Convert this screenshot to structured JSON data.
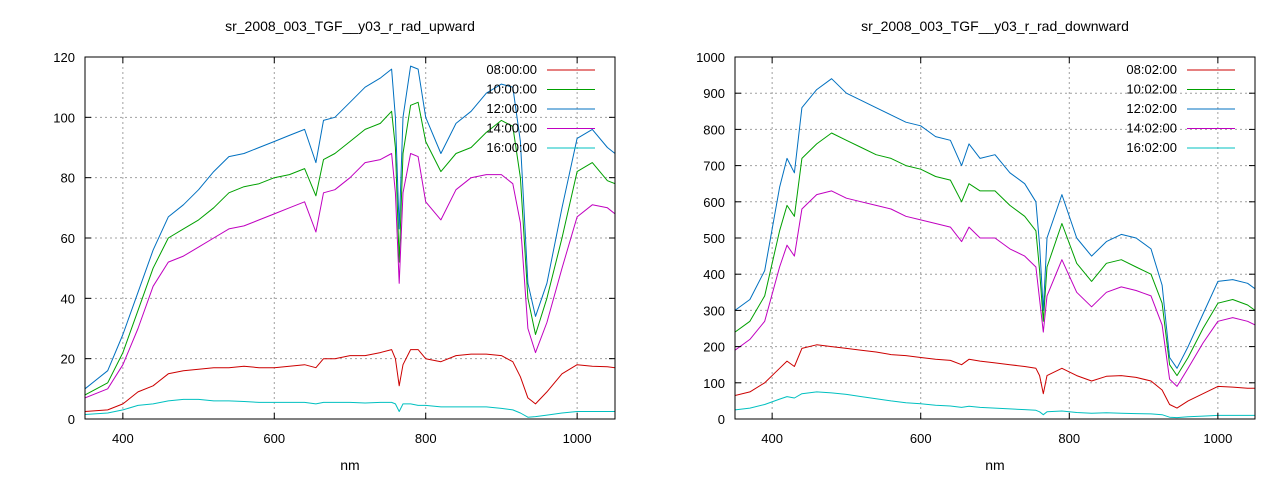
{
  "chart_data": [
    {
      "type": "line",
      "title": "sr_2008_003_TGF__y03_r_rad_upward",
      "xlabel": "nm",
      "ylabel": "",
      "xlim": [
        350,
        1050
      ],
      "ylim": [
        0,
        120
      ],
      "xticks": [
        400,
        600,
        800,
        1000
      ],
      "yticks": [
        0,
        20,
        40,
        60,
        80,
        100,
        120
      ],
      "grid": true,
      "legend": "top-right",
      "series": [
        {
          "name": "08:00:00",
          "color": "#cc0000",
          "x": [
            350,
            380,
            400,
            420,
            440,
            460,
            480,
            500,
            520,
            540,
            560,
            580,
            600,
            620,
            640,
            655,
            665,
            680,
            700,
            720,
            740,
            755,
            760,
            765,
            770,
            780,
            790,
            800,
            820,
            840,
            860,
            880,
            900,
            915,
            925,
            935,
            945,
            960,
            980,
            1000,
            1020,
            1040,
            1050
          ],
          "y": [
            2.5,
            3,
            5,
            9,
            11,
            15,
            16,
            16.5,
            17,
            17,
            17.5,
            17,
            17,
            17.5,
            18,
            17,
            20,
            20,
            21,
            21,
            22,
            23,
            20,
            11,
            18,
            23,
            23,
            20,
            19,
            21,
            21.5,
            21.5,
            21,
            19,
            14,
            7,
            5,
            9,
            15,
            18,
            17.5,
            17.3,
            17
          ]
        },
        {
          "name": "10:00:00",
          "color": "#00a000",
          "x": [
            350,
            380,
            400,
            420,
            440,
            460,
            480,
            500,
            520,
            540,
            560,
            580,
            600,
            620,
            640,
            655,
            665,
            680,
            700,
            720,
            740,
            755,
            760,
            765,
            770,
            780,
            790,
            800,
            820,
            840,
            860,
            880,
            900,
            915,
            925,
            935,
            945,
            960,
            980,
            1000,
            1020,
            1040,
            1050
          ],
          "y": [
            8,
            12,
            22,
            36,
            50,
            60,
            63,
            66,
            70,
            75,
            77,
            78,
            80,
            81,
            83,
            74,
            86,
            88,
            92,
            96,
            98,
            102,
            90,
            52,
            88,
            104,
            105,
            92,
            82,
            88,
            90,
            95,
            99,
            97,
            80,
            40,
            28,
            40,
            60,
            82,
            85,
            79,
            78
          ]
        },
        {
          "name": "12:00:00",
          "color": "#0070c0",
          "x": [
            350,
            380,
            400,
            420,
            440,
            460,
            480,
            500,
            520,
            540,
            560,
            580,
            600,
            620,
            640,
            655,
            665,
            680,
            700,
            720,
            740,
            755,
            760,
            765,
            770,
            780,
            790,
            800,
            820,
            840,
            860,
            880,
            900,
            915,
            925,
            935,
            945,
            960,
            980,
            1000,
            1020,
            1040,
            1050
          ],
          "y": [
            10,
            16,
            28,
            42,
            56,
            67,
            71,
            76,
            82,
            87,
            88,
            90,
            92,
            94,
            96,
            85,
            99,
            100,
            105,
            110,
            113,
            116,
            100,
            63,
            100,
            117,
            116,
            100,
            88,
            98,
            102,
            108,
            111,
            110,
            92,
            45,
            34,
            45,
            70,
            93,
            96,
            90,
            88
          ]
        },
        {
          "name": "14:00:00",
          "color": "#c000c0",
          "x": [
            350,
            380,
            400,
            420,
            440,
            460,
            480,
            500,
            520,
            540,
            560,
            580,
            600,
            620,
            640,
            655,
            665,
            680,
            700,
            720,
            740,
            755,
            760,
            765,
            770,
            780,
            790,
            800,
            820,
            840,
            860,
            880,
            900,
            915,
            925,
            935,
            945,
            960,
            980,
            1000,
            1020,
            1040,
            1050
          ],
          "y": [
            7,
            10,
            18,
            30,
            44,
            52,
            54,
            57,
            60,
            63,
            64,
            66,
            68,
            70,
            72,
            62,
            75,
            76,
            80,
            85,
            86,
            88,
            75,
            45,
            75,
            88,
            87,
            72,
            66,
            76,
            80,
            81,
            81,
            78,
            65,
            30,
            22,
            32,
            50,
            67,
            71,
            70,
            68
          ]
        },
        {
          "name": "16:00:00",
          "color": "#00c0c0",
          "x": [
            350,
            380,
            400,
            420,
            440,
            460,
            480,
            500,
            520,
            540,
            560,
            580,
            600,
            620,
            640,
            655,
            665,
            680,
            700,
            720,
            740,
            755,
            760,
            765,
            770,
            780,
            790,
            800,
            820,
            840,
            860,
            880,
            900,
            915,
            925,
            935,
            945,
            960,
            980,
            1000,
            1020,
            1040,
            1050
          ],
          "y": [
            1.5,
            2,
            3,
            4.5,
            5,
            6,
            6.5,
            6.5,
            6,
            6,
            5.8,
            5.5,
            5.5,
            5.5,
            5.5,
            5,
            5.5,
            5.5,
            5.5,
            5.3,
            5.5,
            5.5,
            5,
            2.5,
            5,
            5,
            4.5,
            4.5,
            4,
            4,
            4,
            4,
            3.5,
            3,
            2,
            0.6,
            0.8,
            1.3,
            2,
            2.5,
            2.5,
            2.5,
            2.5
          ]
        }
      ]
    },
    {
      "type": "line",
      "title": "sr_2008_003_TGF__y03_r_rad_downward",
      "xlabel": "nm",
      "ylabel": "",
      "xlim": [
        350,
        1050
      ],
      "ylim": [
        0,
        1000
      ],
      "xticks": [
        400,
        600,
        800,
        1000
      ],
      "yticks": [
        0,
        100,
        200,
        300,
        400,
        500,
        600,
        700,
        800,
        900,
        1000
      ],
      "grid": true,
      "legend": "top-right",
      "series": [
        {
          "name": "08:02:00",
          "color": "#cc0000",
          "x": [
            350,
            370,
            390,
            410,
            420,
            430,
            440,
            460,
            480,
            500,
            520,
            540,
            560,
            580,
            600,
            620,
            640,
            655,
            665,
            680,
            700,
            720,
            740,
            755,
            760,
            765,
            770,
            790,
            810,
            830,
            850,
            870,
            890,
            910,
            925,
            935,
            945,
            960,
            980,
            1000,
            1020,
            1040,
            1050
          ],
          "y": [
            65,
            75,
            100,
            140,
            160,
            145,
            195,
            205,
            200,
            195,
            190,
            185,
            178,
            175,
            170,
            165,
            162,
            150,
            165,
            160,
            155,
            150,
            145,
            140,
            120,
            70,
            120,
            140,
            120,
            105,
            118,
            120,
            115,
            105,
            80,
            40,
            30,
            50,
            70,
            90,
            88,
            85,
            85
          ]
        },
        {
          "name": "10:02:00",
          "color": "#00a000",
          "x": [
            350,
            370,
            390,
            410,
            420,
            430,
            440,
            460,
            480,
            500,
            520,
            540,
            560,
            580,
            600,
            620,
            640,
            655,
            665,
            680,
            700,
            720,
            740,
            755,
            760,
            765,
            770,
            790,
            810,
            830,
            850,
            870,
            890,
            910,
            925,
            935,
            945,
            960,
            980,
            1000,
            1020,
            1040,
            1050
          ],
          "y": [
            240,
            270,
            340,
            520,
            590,
            560,
            720,
            760,
            790,
            770,
            750,
            730,
            720,
            700,
            690,
            670,
            660,
            600,
            650,
            630,
            630,
            590,
            560,
            520,
            410,
            270,
            420,
            540,
            430,
            380,
            430,
            440,
            420,
            400,
            320,
            150,
            120,
            170,
            250,
            320,
            330,
            315,
            300
          ]
        },
        {
          "name": "12:02:00",
          "color": "#0070c0",
          "x": [
            350,
            370,
            390,
            410,
            420,
            430,
            440,
            460,
            480,
            500,
            520,
            540,
            560,
            580,
            600,
            620,
            640,
            655,
            665,
            680,
            700,
            720,
            740,
            755,
            760,
            765,
            770,
            790,
            810,
            830,
            850,
            870,
            890,
            910,
            925,
            935,
            945,
            960,
            980,
            1000,
            1020,
            1040,
            1050
          ],
          "y": [
            300,
            330,
            410,
            640,
            720,
            680,
            860,
            910,
            940,
            900,
            880,
            860,
            840,
            820,
            810,
            780,
            770,
            700,
            760,
            720,
            730,
            680,
            650,
            600,
            480,
            300,
            500,
            620,
            500,
            450,
            490,
            510,
            500,
            470,
            370,
            170,
            140,
            200,
            290,
            380,
            385,
            375,
            360
          ]
        },
        {
          "name": "14:02:00",
          "color": "#c000c0",
          "x": [
            350,
            370,
            390,
            410,
            420,
            430,
            440,
            460,
            480,
            500,
            520,
            540,
            560,
            580,
            600,
            620,
            640,
            655,
            665,
            680,
            700,
            720,
            740,
            755,
            760,
            765,
            770,
            790,
            810,
            830,
            850,
            870,
            890,
            910,
            925,
            935,
            945,
            960,
            980,
            1000,
            1020,
            1040,
            1050
          ],
          "y": [
            190,
            220,
            270,
            420,
            480,
            450,
            580,
            620,
            630,
            610,
            600,
            590,
            580,
            560,
            550,
            540,
            530,
            490,
            530,
            500,
            500,
            470,
            450,
            420,
            330,
            240,
            340,
            440,
            350,
            310,
            350,
            365,
            355,
            340,
            260,
            110,
            90,
            140,
            210,
            270,
            280,
            270,
            260
          ]
        },
        {
          "name": "16:02:00",
          "color": "#00c0c0",
          "x": [
            350,
            370,
            390,
            410,
            420,
            430,
            440,
            460,
            480,
            500,
            520,
            540,
            560,
            580,
            600,
            620,
            640,
            655,
            665,
            680,
            700,
            720,
            740,
            755,
            760,
            765,
            770,
            790,
            810,
            830,
            850,
            870,
            890,
            910,
            925,
            935,
            945,
            960,
            980,
            1000,
            1020,
            1040,
            1050
          ],
          "y": [
            25,
            30,
            40,
            55,
            62,
            58,
            70,
            75,
            72,
            68,
            62,
            56,
            50,
            45,
            42,
            38,
            36,
            32,
            35,
            32,
            30,
            28,
            26,
            24,
            20,
            12,
            20,
            22,
            18,
            16,
            17,
            16,
            15,
            14,
            12,
            5,
            4,
            6,
            8,
            10,
            10,
            10,
            10
          ]
        }
      ]
    }
  ]
}
